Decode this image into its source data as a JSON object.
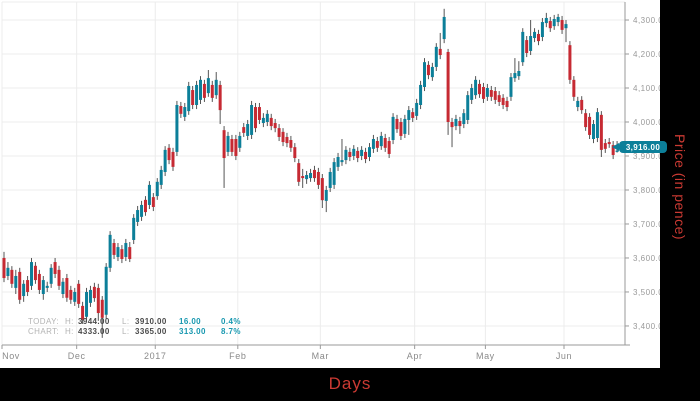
{
  "frame": {
    "xlabel": "Days",
    "ylabel": "Price (in pence)",
    "title_color": "#cb3a33",
    "frame_color": "#000000"
  },
  "legend": {
    "rows": [
      {
        "label": "TODAY:",
        "h_label": "H:",
        "h_value": "3944.00",
        "l_label": "L:",
        "l_value": "3910.00",
        "change": "16.00",
        "pct": "0.4%"
      },
      {
        "label": "CHART:",
        "h_label": "H:",
        "h_value": "4333.00",
        "l_label": "L:",
        "l_value": "3365.00",
        "change": "313.00",
        "pct": "8.7%"
      }
    ]
  },
  "price_badge": {
    "value": "3,916.00",
    "color": "#0c7f99"
  },
  "chart_data": {
    "type": "candlestick",
    "xlabel": "Days",
    "ylabel": "Price (in pence)",
    "last_price": 3916.0,
    "chart_high": 4333.0,
    "chart_low": 3365.0,
    "today_high": 3944.0,
    "today_low": 3910.0,
    "ylim": [
      3344,
      4353
    ],
    "grid": true,
    "up_color": "#0c7f99",
    "down_color": "#c62a33",
    "wick_color": "#555555",
    "grid_color": "#ececec",
    "axis_color": "#9a9a9a",
    "tick_text_color": "#999999",
    "y_ticks": [
      {
        "label": "4,300.00",
        "value": 4300
      },
      {
        "label": "4,200.00",
        "value": 4200
      },
      {
        "label": "4,100.00",
        "value": 4100
      },
      {
        "label": "4,000.00",
        "value": 4000
      },
      {
        "label": "3,900.00",
        "value": 3900
      },
      {
        "label": "3,800.00",
        "value": 3800
      },
      {
        "label": "3,700.00",
        "value": 3700
      },
      {
        "label": "3,600.00",
        "value": 3600
      },
      {
        "label": "3,500.00",
        "value": 3500
      },
      {
        "label": "3,400.00",
        "value": 3400
      }
    ],
    "x_ticks": [
      {
        "label": "Nov",
        "day": 0
      },
      {
        "label": "Dec",
        "day": 19
      },
      {
        "label": "2017",
        "day": 39
      },
      {
        "label": "Feb",
        "day": 60
      },
      {
        "label": "Mar",
        "day": 81
      },
      {
        "label": "Apr",
        "day": 105
      },
      {
        "label": "May",
        "day": 123
      },
      {
        "label": "Jun",
        "day": 143
      }
    ],
    "candles": [
      [
        3600,
        3618,
        3529,
        3541
      ],
      [
        3547,
        3588,
        3535,
        3571
      ],
      [
        3565,
        3576,
        3512,
        3524
      ],
      [
        3512,
        3565,
        3494,
        3547
      ],
      [
        3559,
        3571,
        3465,
        3477
      ],
      [
        3488,
        3535,
        3471,
        3524
      ],
      [
        3535,
        3547,
        3488,
        3500
      ],
      [
        3518,
        3600,
        3506,
        3588
      ],
      [
        3577,
        3588,
        3524,
        3535
      ],
      [
        3553,
        3565,
        3494,
        3506
      ],
      [
        3494,
        3547,
        3477,
        3535
      ],
      [
        3512,
        3530,
        3500,
        3518
      ],
      [
        3524,
        3582,
        3512,
        3571
      ],
      [
        3588,
        3600,
        3541,
        3553
      ],
      [
        3565,
        3577,
        3506,
        3518
      ],
      [
        3494,
        3541,
        3482,
        3530
      ],
      [
        3541,
        3553,
        3471,
        3483
      ],
      [
        3506,
        3518,
        3465,
        3477
      ],
      [
        3471,
        3512,
        3459,
        3500
      ],
      [
        3524,
        3535,
        3453,
        3465
      ],
      [
        3459,
        3471,
        3406,
        3418
      ],
      [
        3427,
        3512,
        3415,
        3500
      ],
      [
        3468,
        3518,
        3456,
        3506
      ],
      [
        3515,
        3527,
        3471,
        3482
      ],
      [
        3512,
        3524,
        3415,
        3438
      ],
      [
        3477,
        3488,
        3365,
        3424
      ],
      [
        3433,
        3585,
        3421,
        3574
      ],
      [
        3571,
        3679,
        3559,
        3668
      ],
      [
        3644,
        3656,
        3597,
        3609
      ],
      [
        3603,
        3644,
        3591,
        3632
      ],
      [
        3626,
        3638,
        3585,
        3597
      ],
      [
        3603,
        3656,
        3591,
        3644
      ],
      [
        3632,
        3647,
        3588,
        3597
      ],
      [
        3653,
        3729,
        3641,
        3718
      ],
      [
        3706,
        3753,
        3694,
        3741
      ],
      [
        3721,
        3768,
        3709,
        3756
      ],
      [
        3771,
        3782,
        3724,
        3735
      ],
      [
        3756,
        3826,
        3744,
        3815
      ],
      [
        3779,
        3791,
        3738,
        3750
      ],
      [
        3782,
        3835,
        3771,
        3824
      ],
      [
        3815,
        3871,
        3803,
        3859
      ],
      [
        3853,
        3929,
        3841,
        3918
      ],
      [
        3924,
        3935,
        3876,
        3888
      ],
      [
        3912,
        3924,
        3856,
        3868
      ],
      [
        3912,
        4062,
        3900,
        4050
      ],
      [
        4047,
        4059,
        4012,
        4024
      ],
      [
        4015,
        4056,
        4003,
        4044
      ],
      [
        4032,
        4118,
        4021,
        4106
      ],
      [
        4094,
        4106,
        4038,
        4050
      ],
      [
        4050,
        4121,
        4038,
        4109
      ],
      [
        4065,
        4135,
        4053,
        4124
      ],
      [
        4112,
        4124,
        4059,
        4071
      ],
      [
        4085,
        4153,
        4074,
        4129
      ],
      [
        4109,
        4121,
        4059,
        4071
      ],
      [
        4079,
        4147,
        4068,
        4124
      ],
      [
        4109,
        4121,
        3994,
        4035
      ],
      [
        3976,
        3988,
        3806,
        3894
      ],
      [
        3912,
        3971,
        3900,
        3959
      ],
      [
        3950,
        3962,
        3900,
        3912
      ],
      [
        3950,
        3962,
        3888,
        3900
      ],
      [
        3924,
        3971,
        3912,
        3959
      ],
      [
        3985,
        3997,
        3956,
        3968
      ],
      [
        3959,
        4006,
        3947,
        3994
      ],
      [
        3962,
        4062,
        3950,
        4050
      ],
      [
        4044,
        4056,
        3970,
        3982
      ],
      [
        4044,
        4056,
        3994,
        4006
      ],
      [
        3997,
        4026,
        3985,
        4012
      ],
      [
        4000,
        4035,
        3988,
        4024
      ],
      [
        4012,
        4024,
        3976,
        3988
      ],
      [
        3997,
        4009,
        3970,
        3982
      ],
      [
        3982,
        3994,
        3944,
        3956
      ],
      [
        3971,
        3982,
        3929,
        3941
      ],
      [
        3956,
        3968,
        3926,
        3938
      ],
      [
        3947,
        3959,
        3912,
        3924
      ],
      [
        3926,
        3938,
        3882,
        3894
      ],
      [
        3879,
        3891,
        3812,
        3824
      ],
      [
        3841,
        3862,
        3806,
        3835
      ],
      [
        3832,
        3856,
        3818,
        3844
      ],
      [
        3835,
        3862,
        3824,
        3850
      ],
      [
        3859,
        3871,
        3824,
        3835
      ],
      [
        3853,
        3865,
        3803,
        3815
      ],
      [
        3835,
        3847,
        3747,
        3770
      ],
      [
        3768,
        3812,
        3735,
        3800
      ],
      [
        3806,
        3865,
        3794,
        3853
      ],
      [
        3815,
        3894,
        3803,
        3882
      ],
      [
        3868,
        3909,
        3856,
        3897
      ],
      [
        3882,
        3950,
        3871,
        3888
      ],
      [
        3888,
        3929,
        3876,
        3918
      ],
      [
        3912,
        3924,
        3885,
        3897
      ],
      [
        3900,
        3932,
        3888,
        3921
      ],
      [
        3915,
        3926,
        3882,
        3894
      ],
      [
        3900,
        3929,
        3888,
        3918
      ],
      [
        3912,
        3924,
        3879,
        3891
      ],
      [
        3897,
        3938,
        3885,
        3926
      ],
      [
        3921,
        3962,
        3909,
        3950
      ],
      [
        3944,
        3956,
        3912,
        3924
      ],
      [
        3929,
        3971,
        3918,
        3959
      ],
      [
        3953,
        3965,
        3912,
        3924
      ],
      [
        3944,
        3956,
        3894,
        3906
      ],
      [
        3947,
        4026,
        3935,
        4015
      ],
      [
        4009,
        4021,
        3968,
        3979
      ],
      [
        4000,
        4012,
        3947,
        3959
      ],
      [
        3965,
        4021,
        3953,
        4009
      ],
      [
        4006,
        4047,
        3962,
        4035
      ],
      [
        4029,
        4041,
        4000,
        4012
      ],
      [
        4018,
        4068,
        4006,
        4056
      ],
      [
        4050,
        4121,
        4038,
        4109
      ],
      [
        4103,
        4188,
        4091,
        4176
      ],
      [
        4168,
        4179,
        4126,
        4138
      ],
      [
        4132,
        4174,
        4121,
        4162
      ],
      [
        4162,
        4232,
        4150,
        4221
      ],
      [
        4215,
        4262,
        4185,
        4197
      ],
      [
        4244,
        4333,
        4232,
        4309
      ],
      [
        4206,
        4215,
        3962,
        4000
      ],
      [
        4000,
        4012,
        3926,
        3985
      ],
      [
        3988,
        4021,
        3976,
        4009
      ],
      [
        4003,
        4015,
        3965,
        3988
      ],
      [
        3994,
        4038,
        3982,
        4026
      ],
      [
        4006,
        4091,
        3994,
        4079
      ],
      [
        4065,
        4112,
        4053,
        4100
      ],
      [
        4079,
        4135,
        4068,
        4124
      ],
      [
        4112,
        4124,
        4071,
        4082
      ],
      [
        4103,
        4115,
        4056,
        4068
      ],
      [
        4074,
        4112,
        4062,
        4100
      ],
      [
        4094,
        4106,
        4062,
        4074
      ],
      [
        4091,
        4103,
        4053,
        4065
      ],
      [
        4079,
        4091,
        4047,
        4059
      ],
      [
        4071,
        4082,
        4038,
        4050
      ],
      [
        4062,
        4074,
        4032,
        4044
      ],
      [
        4074,
        4144,
        4062,
        4132
      ],
      [
        4129,
        4188,
        4118,
        4144
      ],
      [
        4135,
        4179,
        4124,
        4150
      ],
      [
        4176,
        4276,
        4165,
        4265
      ],
      [
        4241,
        4253,
        4191,
        4203
      ],
      [
        4209,
        4300,
        4197,
        4253
      ],
      [
        4247,
        4276,
        4235,
        4265
      ],
      [
        4259,
        4271,
        4226,
        4238
      ],
      [
        4250,
        4306,
        4238,
        4294
      ],
      [
        4291,
        4321,
        4279,
        4306
      ],
      [
        4297,
        4309,
        4265,
        4276
      ],
      [
        4282,
        4315,
        4271,
        4303
      ],
      [
        4294,
        4318,
        4282,
        4309
      ],
      [
        4300,
        4312,
        4259,
        4271
      ],
      [
        4276,
        4300,
        4235,
        4288
      ],
      [
        4226,
        4238,
        4112,
        4124
      ],
      [
        4124,
        4135,
        4062,
        4074
      ],
      [
        4044,
        4074,
        4032,
        4062
      ],
      [
        4065,
        4076,
        4024,
        4035
      ],
      [
        4026,
        4038,
        3974,
        3985
      ],
      [
        4015,
        4026,
        3950,
        3962
      ],
      [
        3950,
        4006,
        3938,
        3994
      ],
      [
        3953,
        4041,
        3941,
        4029
      ],
      [
        4021,
        4032,
        3897,
        3918
      ],
      [
        3938,
        3950,
        3909,
        3921
      ],
      [
        3941,
        3953,
        3924,
        3935
      ],
      [
        3932,
        3944,
        3891,
        3903
      ],
      [
        3912,
        3944,
        3910,
        3916
      ]
    ]
  }
}
